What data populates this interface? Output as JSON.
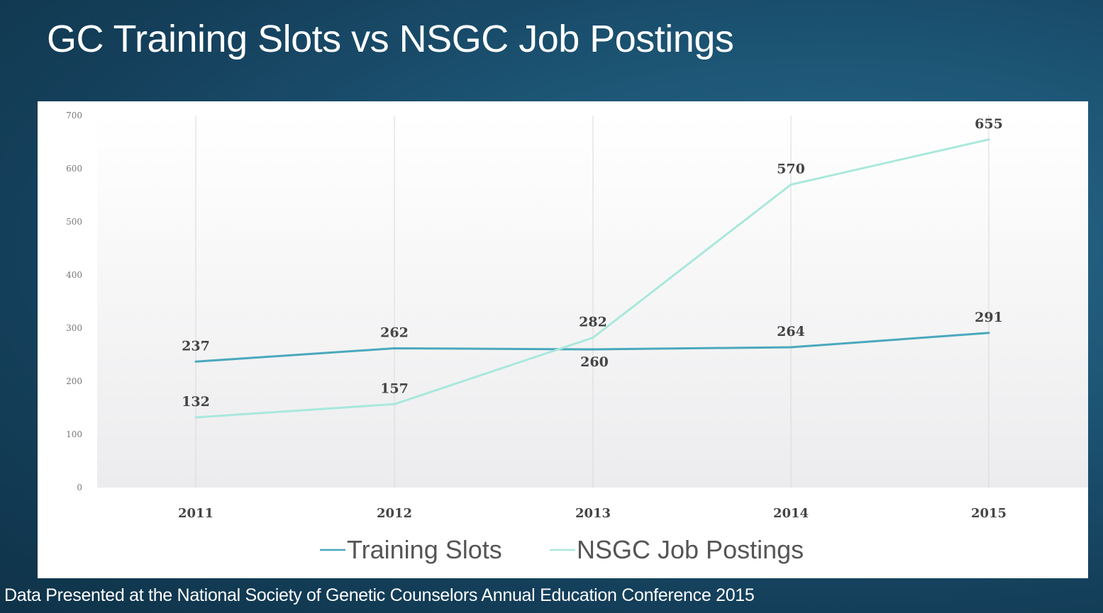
{
  "slide": {
    "title": "GC Training Slots vs NSGC Job Postings",
    "source_note": "Data Presented at the National Society of Genetic Counselors Annual Education Conference 2015"
  },
  "colors": {
    "background": "#1d5676",
    "training_slots": "#4aa8bd",
    "job_postings": "#a9e8dc",
    "panel": "#ffffff"
  },
  "chart_data": {
    "type": "line",
    "categories": [
      "2011",
      "2012",
      "2013",
      "2014",
      "2015"
    ],
    "series": [
      {
        "name": "Training Slots",
        "values": [
          237,
          262,
          260,
          264,
          291
        ],
        "labels": [
          "237",
          "262",
          "260",
          "264",
          "291"
        ]
      },
      {
        "name": "NSGC Job Postings",
        "values": [
          132,
          157,
          282,
          570,
          655
        ],
        "labels": [
          "132",
          "157",
          "282",
          "570",
          "655"
        ]
      }
    ],
    "yticks": [
      "0",
      "100",
      "200",
      "300",
      "400",
      "500",
      "600",
      "700"
    ],
    "ylim": [
      0,
      700
    ],
    "grid": "vertical",
    "legend_position": "bottom"
  }
}
